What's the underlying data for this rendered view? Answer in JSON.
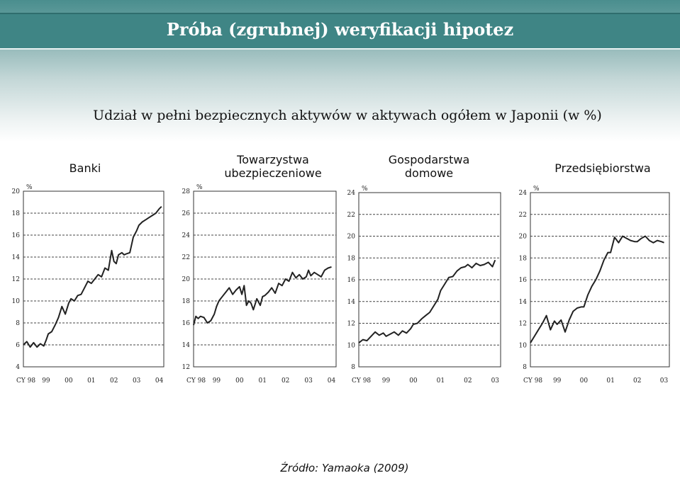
{
  "title": "Próba (zgrubnej) weryfikacji hipotez",
  "subtitle": "Udział w pełni bezpiecznych aktywów w aktywach ogółem w Japonii (w %)",
  "source": "Źródło: Yamaoka (2009)",
  "colors": {
    "title_bar": "#3f8585",
    "line": "#222222",
    "grid": "#444444"
  },
  "chart_data": [
    {
      "type": "line",
      "title_line1": "",
      "title_line2": "Banki",
      "ylabel": "%",
      "ylim": [
        4,
        20
      ],
      "yticks": [
        "4",
        "6",
        "8",
        "10",
        "12",
        "14",
        "16",
        "18",
        "20"
      ],
      "xticks": [
        "CY 98",
        "99",
        "00",
        "01",
        "02",
        "03",
        "04"
      ],
      "x": [
        0.0,
        0.15,
        0.3,
        0.45,
        0.6,
        0.75,
        0.9,
        1.0,
        1.1,
        1.25,
        1.4,
        1.55,
        1.7,
        1.85,
        2.0,
        2.1,
        2.25,
        2.4,
        2.55,
        2.7,
        2.85,
        3.0,
        3.15,
        3.3,
        3.45,
        3.6,
        3.75,
        3.9,
        4.0,
        4.1,
        4.2,
        4.35,
        4.45,
        4.55,
        4.7,
        4.85,
        5.0,
        5.1,
        5.25,
        5.4,
        5.55,
        5.7,
        5.85,
        6.0,
        6.1
      ],
      "y": [
        6.0,
        6.3,
        5.8,
        6.2,
        5.8,
        6.1,
        5.9,
        6.4,
        7.0,
        7.2,
        7.8,
        8.5,
        9.5,
        8.8,
        9.8,
        10.2,
        10.0,
        10.5,
        10.6,
        11.2,
        11.8,
        11.6,
        12.0,
        12.4,
        12.2,
        13.0,
        12.8,
        14.6,
        13.6,
        13.4,
        14.2,
        14.4,
        14.2,
        14.3,
        14.4,
        15.8,
        16.4,
        16.9,
        17.2,
        17.4,
        17.6,
        17.8,
        18.0,
        18.4,
        18.6
      ]
    },
    {
      "type": "line",
      "title_line1": "Towarzystwa",
      "title_line2": "ubezpieczeniowe",
      "ylabel": "%",
      "ylim": [
        12,
        28
      ],
      "yticks": [
        "12",
        "14",
        "16",
        "18",
        "20",
        "22",
        "24",
        "26",
        "28"
      ],
      "xticks": [
        "CY 98",
        "99",
        "00",
        "01",
        "02",
        "03",
        "04"
      ],
      "x": [
        0.0,
        0.1,
        0.2,
        0.3,
        0.45,
        0.6,
        0.75,
        0.9,
        1.0,
        1.1,
        1.25,
        1.4,
        1.55,
        1.7,
        1.85,
        2.0,
        2.1,
        2.2,
        2.3,
        2.4,
        2.5,
        2.6,
        2.75,
        2.9,
        3.0,
        3.1,
        3.25,
        3.4,
        3.55,
        3.7,
        3.85,
        4.0,
        4.15,
        4.3,
        4.45,
        4.6,
        4.75,
        4.9,
        5.0,
        5.1,
        5.25,
        5.4,
        5.55,
        5.7,
        5.85,
        6.0
      ],
      "y": [
        15.8,
        16.6,
        16.4,
        16.6,
        16.5,
        16.0,
        16.2,
        16.8,
        17.5,
        18.0,
        18.4,
        18.8,
        19.2,
        18.6,
        19.0,
        19.3,
        18.6,
        19.4,
        17.6,
        18.0,
        17.8,
        17.2,
        18.2,
        17.6,
        18.4,
        18.5,
        18.8,
        19.2,
        18.7,
        19.6,
        19.4,
        20.0,
        19.8,
        20.6,
        20.1,
        20.4,
        20.0,
        20.2,
        20.8,
        20.3,
        20.6,
        20.4,
        20.2,
        20.8,
        21.0,
        21.1
      ]
    },
    {
      "type": "line",
      "title_line1": "Gospodarstwa",
      "title_line2": "domowe",
      "ylabel": "%",
      "ylim": [
        8,
        24
      ],
      "yticks": [
        "8",
        "10",
        "12",
        "14",
        "16",
        "18",
        "20",
        "22",
        "24"
      ],
      "xticks": [
        "CY 98",
        "99",
        "00",
        "01",
        "02",
        "03"
      ],
      "x": [
        0.0,
        0.15,
        0.3,
        0.45,
        0.6,
        0.75,
        0.9,
        1.0,
        1.15,
        1.3,
        1.45,
        1.6,
        1.75,
        1.9,
        2.0,
        2.15,
        2.3,
        2.45,
        2.6,
        2.75,
        2.9,
        3.0,
        3.15,
        3.3,
        3.45,
        3.6,
        3.75,
        3.9,
        4.0,
        4.15,
        4.3,
        4.45,
        4.6,
        4.75,
        4.9,
        5.0
      ],
      "y": [
        10.2,
        10.5,
        10.4,
        10.8,
        11.2,
        10.9,
        11.1,
        10.8,
        11.0,
        11.2,
        10.9,
        11.3,
        11.1,
        11.5,
        11.9,
        12.0,
        12.4,
        12.7,
        13.0,
        13.6,
        14.2,
        15.0,
        15.6,
        16.2,
        16.3,
        16.8,
        17.1,
        17.2,
        17.4,
        17.1,
        17.5,
        17.3,
        17.4,
        17.6,
        17.2,
        17.8
      ]
    },
    {
      "type": "line",
      "title_line1": "",
      "title_line2": "Przedsiębiorstwa",
      "ylabel": "%",
      "ylim": [
        8,
        24
      ],
      "yticks": [
        "8",
        "10",
        "12",
        "14",
        "16",
        "18",
        "20",
        "22",
        "24"
      ],
      "xticks": [
        "CY 98",
        "99",
        "00",
        "01",
        "02",
        "03"
      ],
      "x": [
        0.0,
        0.15,
        0.3,
        0.45,
        0.6,
        0.75,
        0.9,
        1.0,
        1.15,
        1.3,
        1.45,
        1.6,
        1.75,
        1.9,
        2.0,
        2.15,
        2.3,
        2.45,
        2.6,
        2.75,
        2.9,
        3.0,
        3.15,
        3.3,
        3.45,
        3.6,
        3.75,
        3.9,
        4.0,
        4.15,
        4.3,
        4.45,
        4.6,
        4.75,
        4.9,
        5.0
      ],
      "y": [
        10.2,
        10.8,
        11.4,
        12.0,
        12.7,
        11.4,
        12.2,
        11.9,
        12.3,
        11.2,
        12.3,
        13.1,
        13.4,
        13.5,
        13.5,
        14.6,
        15.4,
        16.0,
        16.8,
        17.8,
        18.5,
        18.5,
        19.9,
        19.4,
        20.0,
        19.8,
        19.6,
        19.5,
        19.5,
        19.8,
        20.0,
        19.6,
        19.4,
        19.6,
        19.5,
        19.4
      ]
    }
  ]
}
